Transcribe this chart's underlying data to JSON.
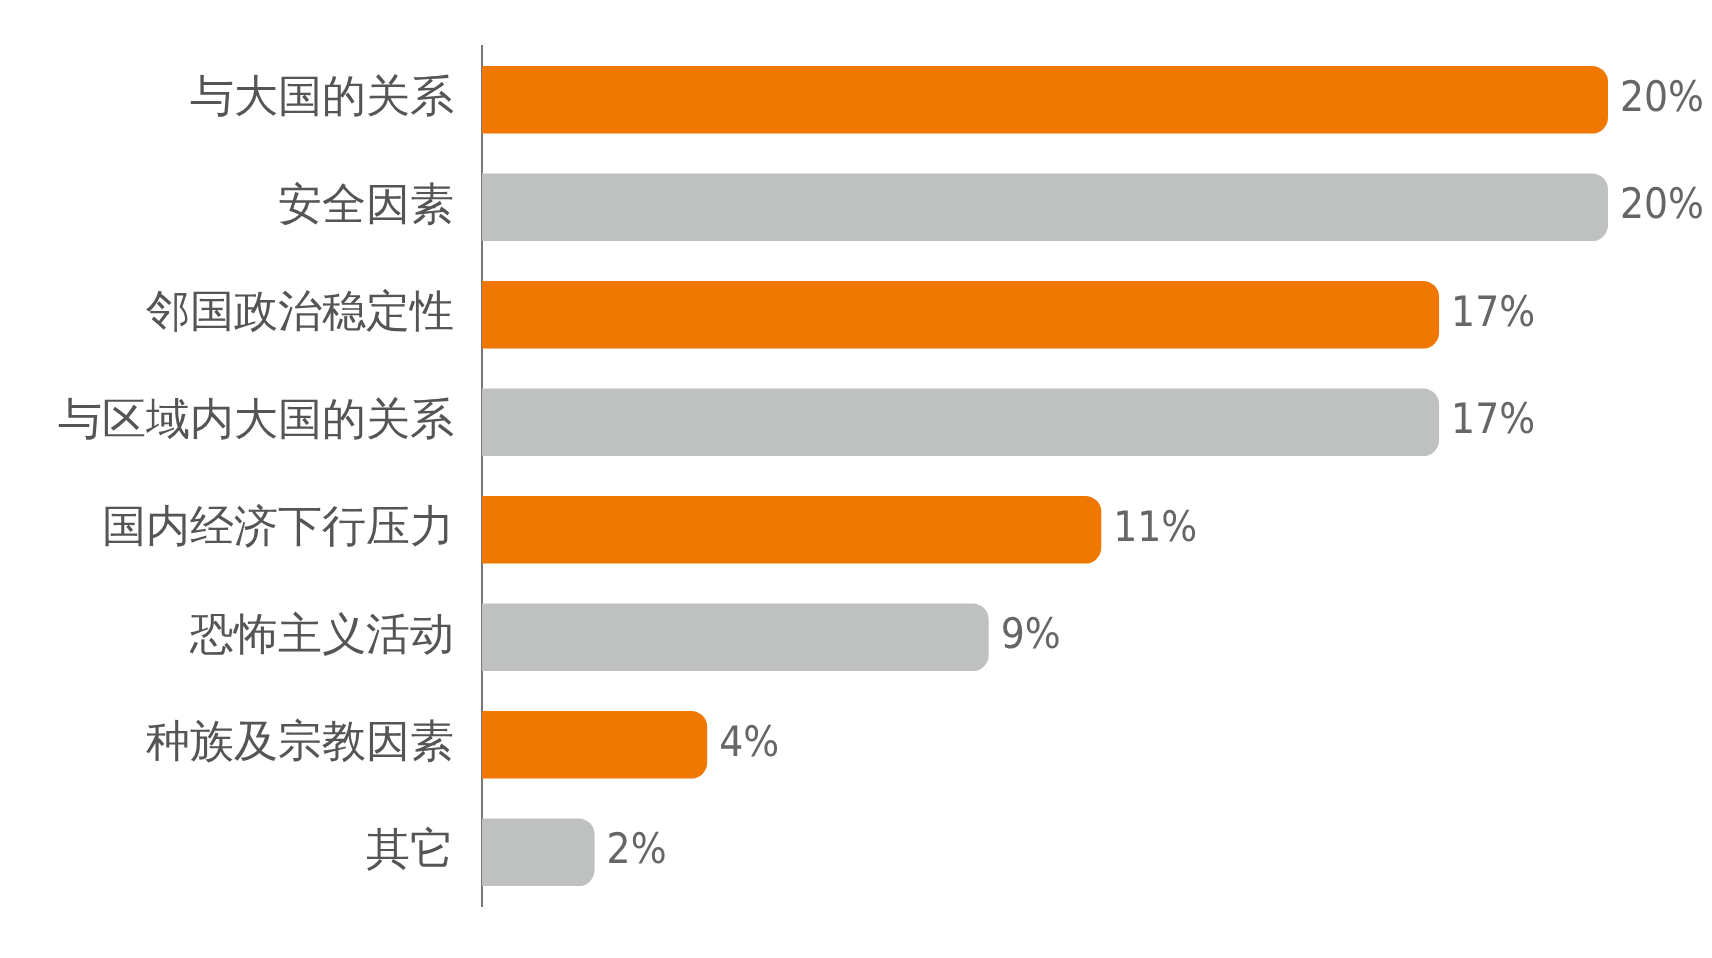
{
  "chart_data": {
    "type": "bar",
    "orientation": "horizontal",
    "categories": [
      "与大国的关系",
      "安全因素",
      "邻国政治稳定性",
      "与区域内大国的关系",
      "国内经济下行压力",
      "恐怖主义活动",
      "种族及宗教因素",
      "其它"
    ],
    "values": [
      20,
      20,
      17,
      17,
      11,
      9,
      4,
      2
    ],
    "colors": [
      "#f07800",
      "#bfc1c0",
      "#f07800",
      "#bfc1c0",
      "#f07800",
      "#bfc1c0",
      "#f07800",
      "#bfc1c0"
    ],
    "value_labels": [
      "20%",
      "20%",
      "17%",
      "17%",
      "11%",
      "9%",
      "4%",
      "2%"
    ],
    "tick_labels": "y",
    "legend": false
  }
}
